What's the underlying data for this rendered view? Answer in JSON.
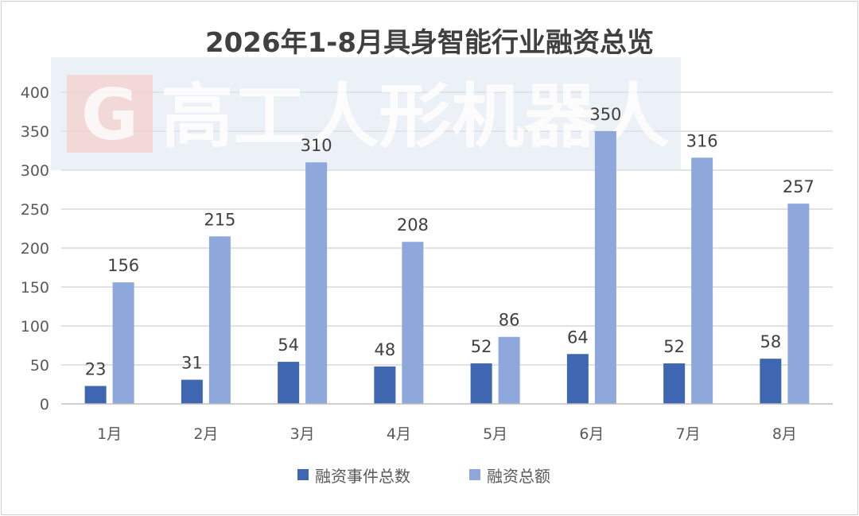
{
  "chart_data": {
    "type": "bar",
    "title": "2026年1-8月具身智能行业融资总览",
    "categories": [
      "1月",
      "2月",
      "3月",
      "4月",
      "5月",
      "6月",
      "7月",
      "8月"
    ],
    "series": [
      {
        "name": "融资事件总数",
        "values": [
          23,
          31,
          54,
          48,
          52,
          64,
          52,
          58
        ],
        "color": "#3f67b1"
      },
      {
        "name": "融资总额",
        "values": [
          156,
          215,
          310,
          208,
          86,
          350,
          316,
          257
        ],
        "color": "#8fa8dc"
      }
    ],
    "ylim": [
      0,
      400
    ],
    "yticks": [
      0,
      50,
      100,
      150,
      200,
      250,
      300,
      350,
      400
    ],
    "grid": true,
    "legend_position": "bottom",
    "data_labels": true
  },
  "watermark": {
    "logo_letter": "G",
    "text": "高工人形机器人"
  }
}
